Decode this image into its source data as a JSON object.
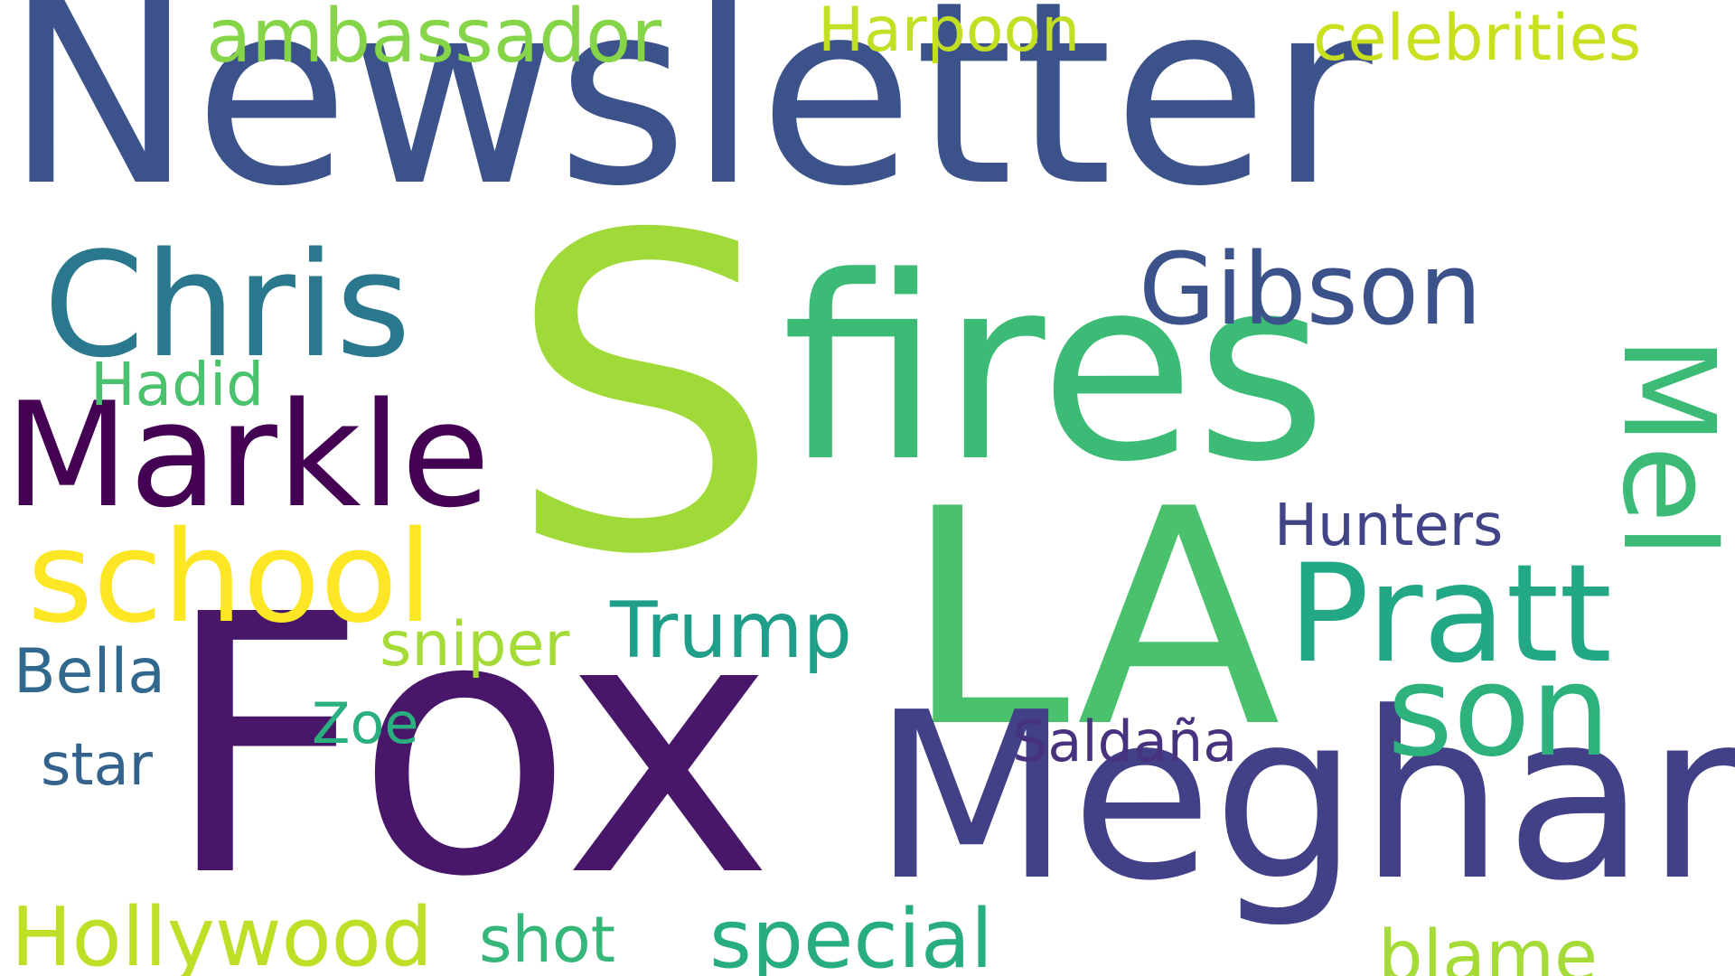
{
  "words": {
    "newsletter": {
      "text": "Newsletter",
      "color": "#3b528b"
    },
    "s": {
      "text": "S",
      "color": "#a0da39"
    },
    "fires": {
      "text": "fires",
      "color": "#3bbb75"
    },
    "chris": {
      "text": "Chris",
      "color": "#2a788e"
    },
    "gibson": {
      "text": "Gibson",
      "color": "#3b528b"
    },
    "mel": {
      "text": "Mel",
      "color": "#3bbb75"
    },
    "markle": {
      "text": "Markle",
      "color": "#440154"
    },
    "school": {
      "text": "school",
      "color": "#fde725"
    },
    "la": {
      "text": "LA",
      "color": "#4ac16d"
    },
    "pratt": {
      "text": "Pratt",
      "color": "#22a884"
    },
    "fox": {
      "text": "Fox",
      "color": "#481769"
    },
    "meghan": {
      "text": "Meghan",
      "color": "#424086"
    },
    "son": {
      "text": "son",
      "color": "#2db27d"
    },
    "ambassador": {
      "text": "ambassador",
      "color": "#86d549"
    },
    "harpoon": {
      "text": "Harpoon",
      "color": "#c2df23"
    },
    "celebrities": {
      "text": "celebrities",
      "color": "#c8e020"
    },
    "hadid": {
      "text": "Hadid",
      "color": "#4ac16d"
    },
    "hunters": {
      "text": "Hunters",
      "color": "#414487"
    },
    "trump": {
      "text": "Trump",
      "color": "#1f9e89"
    },
    "sniper": {
      "text": "sniper",
      "color": "#a5db36"
    },
    "bella": {
      "text": "Bella",
      "color": "#31688e"
    },
    "zoe": {
      "text": "Zoe",
      "color": "#2ab07f"
    },
    "saldana": {
      "text": "Saldaña",
      "color": "#46327e"
    },
    "star": {
      "text": "star",
      "color": "#33638d"
    },
    "hollywood": {
      "text": "Hollywood",
      "color": "#bddf26"
    },
    "shot": {
      "text": "shot",
      "color": "#35b779"
    },
    "special": {
      "text": "special",
      "color": "#27ad81"
    },
    "blame": {
      "text": "blame",
      "color": "#a5db36"
    }
  }
}
